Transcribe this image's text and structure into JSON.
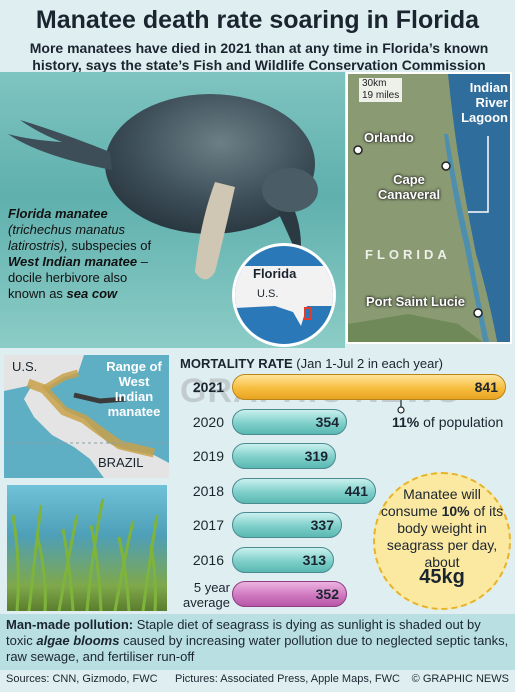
{
  "header": {
    "title": "Manatee death rate soaring in Florida",
    "subtitle": "More manatees have died in 2021 than at any time in Florida’s known history, says the state’s Fish and Wildlife Conservation Commission"
  },
  "species": {
    "name_line": "Florida manatee",
    "latin": "(trichechus manatus latirostris),",
    "subspecies_prefix": "subspecies of",
    "parent": "West Indian manatee",
    "desc": "– docile herbivore also known as",
    "alias": "sea cow"
  },
  "map": {
    "scale_km": "30km",
    "scale_miles": "19 miles",
    "lagoon": "Indian River Lagoon",
    "cities": [
      "Orlando",
      "Cape Canaveral",
      "Port Saint Lucie"
    ],
    "state": "FLORIDA",
    "inset_title": "Florida",
    "inset_country": "U.S."
  },
  "range_map": {
    "title": "Range of West Indian manatee",
    "us_label": "U.S.",
    "brazil_label": "BRAZIL"
  },
  "chart_data": {
    "type": "bar",
    "title": "MORTALITY RATE",
    "subtitle": "(Jan 1-Jul 2 in each year)",
    "categories": [
      "2021",
      "2020",
      "2019",
      "2018",
      "2017",
      "2016",
      "5 year average"
    ],
    "values": [
      841,
      354,
      319,
      441,
      337,
      313,
      352
    ],
    "highlight": {
      "2021": "#f3b637",
      "5 year average": "#c86ab8"
    },
    "default_color": "#7fcfca",
    "annotation": {
      "value": "11%",
      "text": "of population"
    }
  },
  "chart_labels": {
    "title_bold": "MORTALITY RATE",
    "title_rest": "(Jan 1-Jul 2 in each year)",
    "pct": "11%",
    "pct_text": "of population",
    "avg_line1": "5 year",
    "avg_line2": "average"
  },
  "consumption": {
    "line1": "Manatee will consume",
    "bold": "10%",
    "line2": "of its body weight in seagrass per day, about",
    "amount": "45kg"
  },
  "pollution": {
    "lead": "Man-made pollution:",
    "text1": "Staple diet of seagrass is dying as sunlight is shaded out by toxic",
    "emph": "algae blooms",
    "text2": "caused by increasing water pollution due to neglected septic tanks, raw sewage, and fertiliser run-off"
  },
  "footer": {
    "sources": "Sources: CNN, Gizmodo, FWC",
    "pictures": "Pictures: Associated Press, Apple Maps, FWC",
    "credit": "© GRAPHIC NEWS"
  },
  "watermark": "GRAPHIC NEWS"
}
